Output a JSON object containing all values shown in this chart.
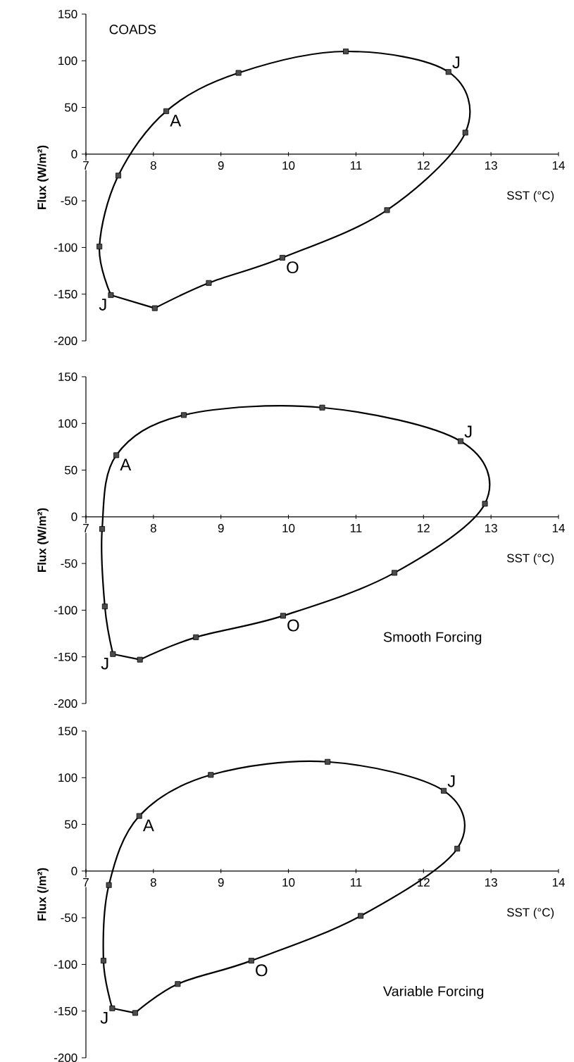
{
  "chart_data": [
    {
      "type": "line",
      "xlabel": "SST (°C)",
      "ylabel": "Flux (W/m²)",
      "xlim": [
        7,
        14
      ],
      "ylim": [
        -200,
        150
      ],
      "xticks": [
        7,
        8,
        9,
        10,
        11,
        12,
        13,
        14
      ],
      "yticks": [
        -200,
        -150,
        -100,
        -50,
        0,
        50,
        100,
        150
      ],
      "marker": "square",
      "x": [
        7.37,
        7.2,
        7.48,
        8.19,
        9.26,
        10.85,
        12.37,
        12.62,
        11.46,
        9.91,
        8.82,
        8.02
      ],
      "series": [
        {
          "color": "#000000",
          "values": [
            -151,
            -99,
            -23,
            46,
            87,
            110,
            88,
            23,
            -60,
            -111,
            -138,
            -165
          ]
        }
      ],
      "annotations": [
        "COADS",
        {
          "text": "J",
          "x": 7.37,
          "y": -151
        },
        {
          "text": "A",
          "x": 8.19,
          "y": 46
        },
        {
          "text": "J",
          "x": 12.37,
          "y": 88
        },
        {
          "text": "O",
          "x": 9.91,
          "y": -111
        }
      ]
    },
    {
      "type": "line",
      "xlabel": "SST (°C)",
      "ylabel": "Flux (W/m²)",
      "xlim": [
        7,
        14
      ],
      "ylim": [
        -200,
        150
      ],
      "xticks": [
        7,
        8,
        9,
        10,
        11,
        12,
        13,
        14
      ],
      "yticks": [
        -200,
        -150,
        -100,
        -50,
        0,
        50,
        100,
        150
      ],
      "marker": "square",
      "x": [
        7.4,
        7.28,
        7.24,
        7.45,
        8.45,
        10.5,
        12.55,
        12.91,
        11.57,
        9.92,
        8.63,
        7.8
      ],
      "series": [
        {
          "color": "#000000",
          "values": [
            -147,
            -96,
            -13,
            66,
            109,
            117,
            81,
            14,
            -60,
            -106,
            -129,
            -153
          ]
        }
      ],
      "annotations": [
        "Smooth Forcing",
        {
          "text": "J",
          "x": 7.4,
          "y": -147
        },
        {
          "text": "A",
          "x": 7.45,
          "y": 66
        },
        {
          "text": "J",
          "x": 12.55,
          "y": 81
        },
        {
          "text": "O",
          "x": 9.92,
          "y": -106
        }
      ]
    },
    {
      "type": "line",
      "xlabel": "SST (°C)",
      "ylabel": "Flux (/m²)",
      "xlim": [
        7,
        14
      ],
      "ylim": [
        -200,
        150
      ],
      "xticks": [
        7,
        8,
        9,
        10,
        11,
        12,
        13,
        14
      ],
      "yticks": [
        -200,
        -150,
        -100,
        -50,
        0,
        50,
        100,
        150
      ],
      "marker": "square",
      "x": [
        7.39,
        7.26,
        7.34,
        7.79,
        8.85,
        10.58,
        12.3,
        12.5,
        11.07,
        9.45,
        8.36,
        7.73
      ],
      "series": [
        {
          "color": "#000000",
          "values": [
            -147,
            -96,
            -15,
            59,
            103,
            117,
            86,
            24,
            -48,
            -96,
            -121,
            -152
          ]
        }
      ],
      "annotations": [
        "Variable Forcing",
        {
          "text": "J",
          "x": 7.39,
          "y": -147
        },
        {
          "text": "A",
          "x": 7.79,
          "y": 59
        },
        {
          "text": "J",
          "x": 12.3,
          "y": 86
        },
        {
          "text": "O",
          "x": 9.45,
          "y": -96
        }
      ]
    }
  ]
}
